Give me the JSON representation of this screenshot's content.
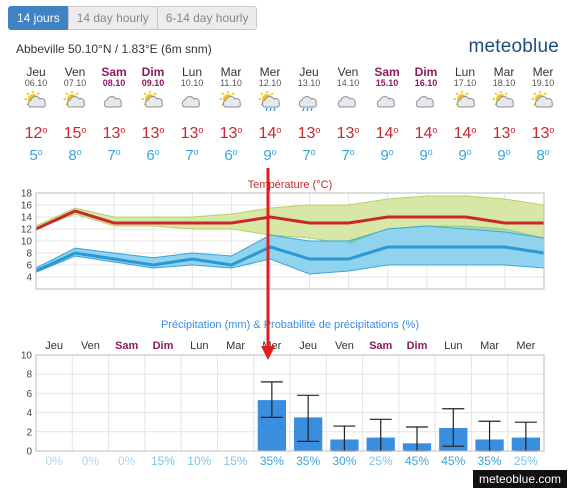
{
  "tabs": [
    "14 jours",
    "14 day hourly",
    "6-14 day hourly"
  ],
  "location": "Abbeville  50.10°N / 1.83°E (6m snm)",
  "brand": "meteoblue",
  "footer_brand": "meteoblue.com",
  "colors": {
    "weekend": "#8b1a5e",
    "max_temp": "#c8282d",
    "min_temp": "#3aa4d8",
    "precip_bar": "#3a8ee0",
    "prob_zero": "#a9d8f0",
    "prob_low": "#7cc3e8",
    "prob_mid": "#3aa4d8",
    "pointer": "#e01e1e"
  },
  "days": [
    {
      "name": "Jeu",
      "date": "06.10",
      "weekend": false,
      "icon": "sun-cloud-icon",
      "max": "12",
      "min": "5"
    },
    {
      "name": "Ven",
      "date": "07.10",
      "weekend": false,
      "icon": "sun-cloud-icon",
      "max": "15",
      "min": "8"
    },
    {
      "name": "Sam",
      "date": "08.10",
      "weekend": true,
      "icon": "cloud-icon",
      "max": "13",
      "min": "7"
    },
    {
      "name": "Dim",
      "date": "09.10",
      "weekend": true,
      "icon": "sun-cloud-icon",
      "max": "13",
      "min": "6"
    },
    {
      "name": "Lun",
      "date": "10.10",
      "weekend": false,
      "icon": "cloud-icon",
      "max": "13",
      "min": "7"
    },
    {
      "name": "Mar",
      "date": "11.10",
      "weekend": false,
      "icon": "sun-cloud-icon",
      "max": "13",
      "min": "6"
    },
    {
      "name": "Mer",
      "date": "12.10",
      "weekend": false,
      "icon": "sun-cloud-rain-icon",
      "max": "14",
      "min": "9"
    },
    {
      "name": "Jeu",
      "date": "13.10",
      "weekend": false,
      "icon": "cloud-rain-icon",
      "max": "13",
      "min": "7"
    },
    {
      "name": "Ven",
      "date": "14.10",
      "weekend": false,
      "icon": "cloud-icon",
      "max": "13",
      "min": "7"
    },
    {
      "name": "Sam",
      "date": "15.10",
      "weekend": true,
      "icon": "cloud-icon",
      "max": "14",
      "min": "9"
    },
    {
      "name": "Dim",
      "date": "16.10",
      "weekend": true,
      "icon": "cloud-icon",
      "max": "14",
      "min": "9"
    },
    {
      "name": "Lun",
      "date": "17.10",
      "weekend": false,
      "icon": "sun-cloud-icon",
      "max": "14",
      "min": "9"
    },
    {
      "name": "Mar",
      "date": "18.10",
      "weekend": false,
      "icon": "sun-cloud-icon",
      "max": "13",
      "min": "9"
    },
    {
      "name": "Mer",
      "date": "19.10",
      "weekend": false,
      "icon": "sun-cloud-icon",
      "max": "13",
      "min": "8"
    }
  ],
  "chart_data": [
    {
      "type": "area",
      "title": "Température (°C)",
      "categories": [
        "Jeu",
        "Ven",
        "Sam",
        "Dim",
        "Lun",
        "Mar",
        "Mer",
        "Jeu",
        "Ven",
        "Sam",
        "Dim",
        "Lun",
        "Mar",
        "Mer"
      ],
      "ylim": [
        2,
        18
      ],
      "yticks": [
        4,
        6,
        8,
        10,
        12,
        14,
        16,
        18
      ],
      "grid": true,
      "series": [
        {
          "name": "max",
          "values": [
            12,
            15,
            13,
            13,
            13,
            13,
            14,
            13,
            13,
            14,
            14,
            14,
            13,
            13
          ]
        },
        {
          "name": "max_upper",
          "values": [
            12.5,
            15.5,
            14,
            14,
            14,
            14.5,
            15.5,
            16,
            16,
            17,
            17.5,
            17.5,
            17,
            16
          ]
        },
        {
          "name": "max_lower",
          "values": [
            12,
            14.5,
            12.5,
            12.5,
            12,
            12,
            11,
            10.5,
            9.5,
            12,
            12.5,
            12.5,
            12,
            10.5
          ]
        },
        {
          "name": "min",
          "values": [
            5,
            8,
            7,
            6,
            7,
            6,
            9,
            7,
            7,
            9,
            9,
            9,
            9,
            8
          ]
        },
        {
          "name": "min_upper",
          "values": [
            5.5,
            8.8,
            8,
            7.2,
            8,
            7.5,
            11,
            10,
            10,
            12,
            12.5,
            12,
            11.5,
            10.5
          ]
        },
        {
          "name": "min_lower",
          "values": [
            4.8,
            7.5,
            6.5,
            5.5,
            6,
            5.5,
            7,
            4.5,
            5,
            6,
            6,
            6,
            6,
            5.5
          ]
        }
      ]
    },
    {
      "type": "bar",
      "title": "Précipitation (mm) & Probabilité de précipitations (%)",
      "categories": [
        "Jeu",
        "Ven",
        "Sam",
        "Dim",
        "Lun",
        "Mar",
        "Mer",
        "Jeu",
        "Ven",
        "Sam",
        "Dim",
        "Lun",
        "Mar",
        "Mer"
      ],
      "ylim": [
        0,
        10
      ],
      "yticks": [
        0,
        2,
        4,
        6,
        8,
        10
      ],
      "grid": true,
      "values": [
        0,
        0,
        0,
        0,
        0,
        0,
        5.3,
        3.5,
        1.2,
        1.4,
        0.8,
        2.4,
        1.2,
        1.4
      ],
      "error_low": [
        0,
        0,
        0,
        0,
        0,
        0,
        3.5,
        1.0,
        0,
        0,
        0,
        0.5,
        0,
        0
      ],
      "error_high": [
        0,
        0,
        0,
        0,
        0,
        0,
        7.2,
        5.8,
        2.6,
        3.3,
        2.5,
        4.4,
        3.1,
        3.0
      ],
      "probability": [
        "0%",
        "0%",
        "0%",
        "15%",
        "10%",
        "15%",
        "35%",
        "35%",
        "30%",
        "25%",
        "45%",
        "45%",
        "35%",
        "25%"
      ],
      "pointer_day": 6
    }
  ]
}
